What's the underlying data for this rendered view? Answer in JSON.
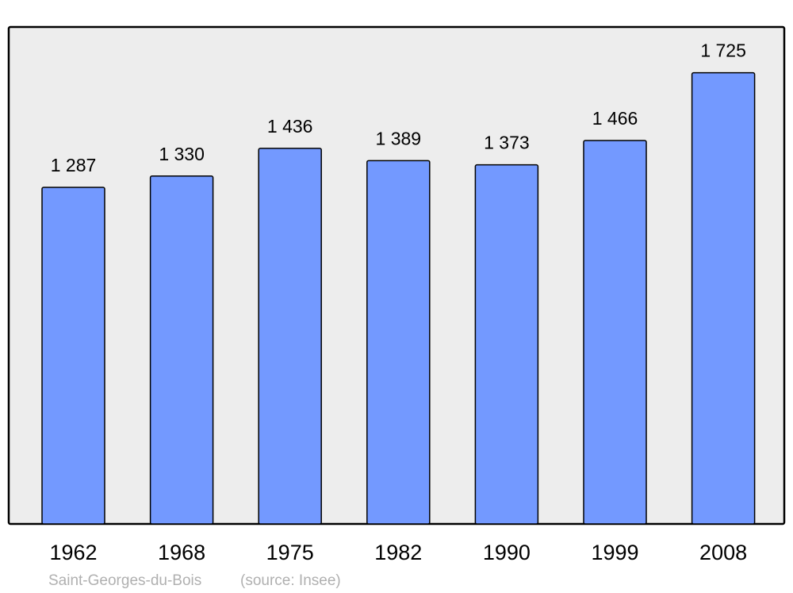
{
  "chart_data": {
    "type": "bar",
    "categories": [
      "1962",
      "1968",
      "1975",
      "1982",
      "1990",
      "1999",
      "2008"
    ],
    "values": [
      1287,
      1330,
      1436,
      1389,
      1373,
      1466,
      1725
    ],
    "value_labels": [
      "1 287",
      "1 330",
      "1 436",
      "1 389",
      "1 373",
      "1 466",
      "1 725"
    ],
    "ylim": [
      0,
      1900
    ],
    "grid": false,
    "caption": "Saint-Georges-du-Bois",
    "source": "(source: Insee)",
    "colors": {
      "bar": "#7399ff",
      "background": "#ededed",
      "frame": "#000000",
      "caption": "#b0b0b0"
    }
  }
}
